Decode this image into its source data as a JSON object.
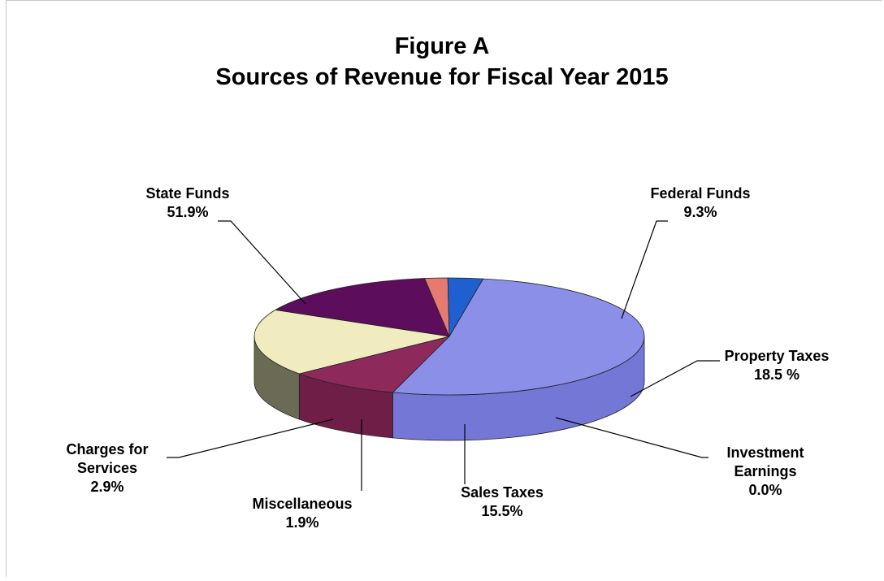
{
  "chart_data": {
    "type": "pie",
    "title": "Figure A",
    "subtitle": "Sources of Revenue for Fiscal Year 2015",
    "slices": [
      {
        "name": "State Funds",
        "value": 51.9,
        "display_value": "51.9%",
        "color": "#8b8fe8",
        "side_color": "#7477d6"
      },
      {
        "name": "Federal Funds",
        "value": 9.3,
        "display_value": "9.3%",
        "color": "#8e2a5b",
        "side_color": "#6f1f47"
      },
      {
        "name": "Property Taxes",
        "value": 18.5,
        "display_value": "18.5 %",
        "color": "#f0ecc0",
        "side_color": "#6b6b55"
      },
      {
        "name": "Investment Earnings",
        "value": 0.0,
        "display_value": "0.0%",
        "color": "#3a3a3a",
        "side_color": "#2a2a2a"
      },
      {
        "name": "Sales Taxes",
        "value": 15.5,
        "display_value": "15.5%",
        "color": "#5c0d5c",
        "side_color": "#4a0848"
      },
      {
        "name": "Miscellaneous",
        "value": 1.9,
        "display_value": "1.9%",
        "color": "#e67a72",
        "side_color": "#d06860"
      },
      {
        "name": "Charges for Services",
        "value": 2.9,
        "display_value": "2.9%",
        "color": "#1f5fd0",
        "side_color": "#1a4fb0"
      }
    ],
    "labels": [
      {
        "lines": [
          "State Funds",
          "51.9%"
        ]
      },
      {
        "lines": [
          "Federal Funds",
          "9.3%"
        ]
      },
      {
        "lines": [
          "Property Taxes",
          "18.5 %"
        ]
      },
      {
        "lines": [
          "Investment",
          "Earnings",
          "0.0%"
        ]
      },
      {
        "lines": [
          "Sales Taxes",
          "15.5%"
        ]
      },
      {
        "lines": [
          "Miscellaneous",
          "1.9%"
        ]
      },
      {
        "lines": [
          "Charges for",
          "Services",
          "2.9%"
        ]
      }
    ]
  }
}
